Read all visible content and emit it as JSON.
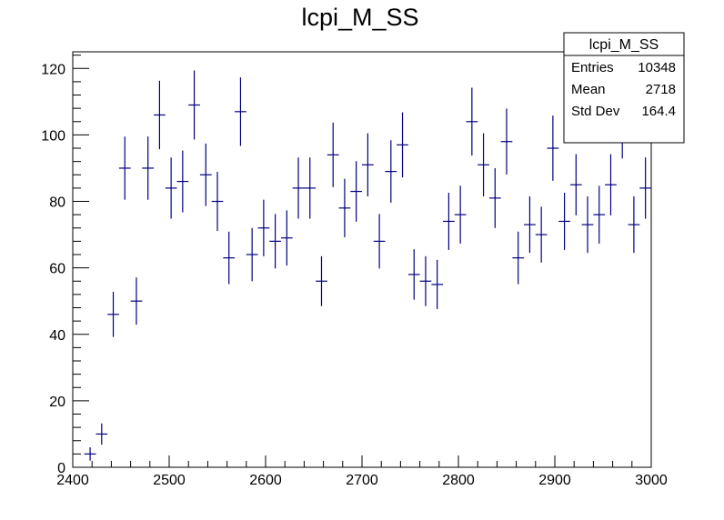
{
  "chart_data": {
    "type": "scatter",
    "title": "lcpi_M_SS",
    "xlabel": "",
    "ylabel": "",
    "xlim": [
      2400,
      3000
    ],
    "ylim": [
      0,
      125
    ],
    "x_ticks": [
      2400,
      2500,
      2600,
      2700,
      2800,
      2900,
      3000
    ],
    "y_ticks": [
      0,
      20,
      40,
      60,
      80,
      100,
      120
    ],
    "grid": false,
    "series_color": "#000080",
    "bin_width": 12,
    "series": [
      {
        "points": [
          {
            "x": 2418,
            "y": 4,
            "err": 2.0
          },
          {
            "x": 2430,
            "y": 10,
            "err": 3.2
          },
          {
            "x": 2442,
            "y": 46,
            "err": 6.8
          },
          {
            "x": 2454,
            "y": 90,
            "err": 9.5
          },
          {
            "x": 2466,
            "y": 50,
            "err": 7.1
          },
          {
            "x": 2478,
            "y": 90,
            "err": 9.5
          },
          {
            "x": 2490,
            "y": 106,
            "err": 10.3
          },
          {
            "x": 2502,
            "y": 84,
            "err": 9.2
          },
          {
            "x": 2514,
            "y": 86,
            "err": 9.3
          },
          {
            "x": 2526,
            "y": 109,
            "err": 10.4
          },
          {
            "x": 2538,
            "y": 88,
            "err": 9.4
          },
          {
            "x": 2550,
            "y": 80,
            "err": 8.9
          },
          {
            "x": 2562,
            "y": 63,
            "err": 7.9
          },
          {
            "x": 2574,
            "y": 107,
            "err": 10.3
          },
          {
            "x": 2586,
            "y": 64,
            "err": 8.0
          },
          {
            "x": 2598,
            "y": 72,
            "err": 8.5
          },
          {
            "x": 2610,
            "y": 68,
            "err": 8.2
          },
          {
            "x": 2622,
            "y": 69,
            "err": 8.3
          },
          {
            "x": 2634,
            "y": 84,
            "err": 9.2
          },
          {
            "x": 2646,
            "y": 84,
            "err": 9.2
          },
          {
            "x": 2658,
            "y": 56,
            "err": 7.5
          },
          {
            "x": 2670,
            "y": 94,
            "err": 9.7
          },
          {
            "x": 2682,
            "y": 78,
            "err": 8.8
          },
          {
            "x": 2694,
            "y": 83,
            "err": 9.1
          },
          {
            "x": 2706,
            "y": 91,
            "err": 9.5
          },
          {
            "x": 2718,
            "y": 68,
            "err": 8.2
          },
          {
            "x": 2730,
            "y": 89,
            "err": 9.4
          },
          {
            "x": 2742,
            "y": 97,
            "err": 9.8
          },
          {
            "x": 2754,
            "y": 58,
            "err": 7.6
          },
          {
            "x": 2766,
            "y": 56,
            "err": 7.5
          },
          {
            "x": 2778,
            "y": 55,
            "err": 7.4
          },
          {
            "x": 2790,
            "y": 74,
            "err": 8.6
          },
          {
            "x": 2802,
            "y": 76,
            "err": 8.7
          },
          {
            "x": 2814,
            "y": 104,
            "err": 10.2
          },
          {
            "x": 2826,
            "y": 91,
            "err": 9.5
          },
          {
            "x": 2838,
            "y": 81,
            "err": 9.0
          },
          {
            "x": 2850,
            "y": 98,
            "err": 9.9
          },
          {
            "x": 2862,
            "y": 63,
            "err": 7.9
          },
          {
            "x": 2874,
            "y": 73,
            "err": 8.5
          },
          {
            "x": 2886,
            "y": 70,
            "err": 8.4
          },
          {
            "x": 2898,
            "y": 96,
            "err": 9.8
          },
          {
            "x": 2910,
            "y": 74,
            "err": 8.6
          },
          {
            "x": 2922,
            "y": 85,
            "err": 9.2
          },
          {
            "x": 2934,
            "y": 73,
            "err": 8.5
          },
          {
            "x": 2946,
            "y": 76,
            "err": 8.7
          },
          {
            "x": 2958,
            "y": 85,
            "err": 9.2
          },
          {
            "x": 2970,
            "y": 103,
            "err": 10.1
          },
          {
            "x": 2982,
            "y": 73,
            "err": 8.5
          },
          {
            "x": 2994,
            "y": 84,
            "err": 9.2
          }
        ]
      }
    ],
    "stats_box": {
      "title": "lcpi_M_SS",
      "rows": [
        {
          "label": "Entries",
          "value": "10348"
        },
        {
          "label": "Mean",
          "value": "2718"
        },
        {
          "label": "Std Dev",
          "value": "164.4"
        }
      ]
    }
  }
}
